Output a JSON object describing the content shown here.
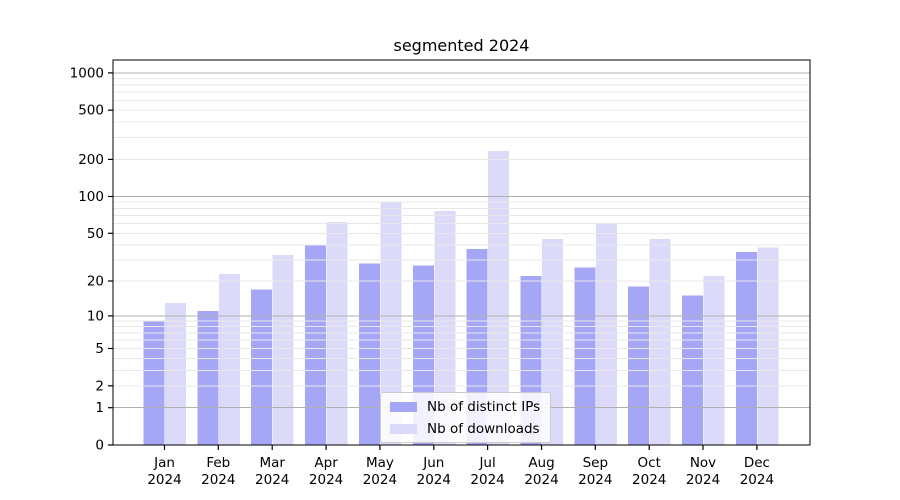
{
  "title": "segmented 2024",
  "chart_data": {
    "type": "bar",
    "title": "segmented 2024",
    "yscale": "log1p (symlog-like: y position ~ log10(value+1))",
    "y_ticks": [
      0,
      1,
      2,
      5,
      10,
      20,
      50,
      100,
      200,
      500,
      1000
    ],
    "ylim": [
      0,
      1270
    ],
    "grid": "horizontal, minor light lines every 1-9 step per decade, major lines at 1/10/100/1000, drawn over bars",
    "legend_position": "lower center inside plot",
    "x_tick_year": "2024",
    "categories": [
      "Jan",
      "Feb",
      "Mar",
      "Apr",
      "May",
      "Jun",
      "Jul",
      "Aug",
      "Sep",
      "Oct",
      "Nov",
      "Dec"
    ],
    "series": [
      {
        "name": "Nb of distinct IPs",
        "color": "#a6a6f6",
        "values": [
          9,
          11,
          17,
          40,
          28,
          27,
          37,
          22,
          26,
          18,
          15,
          35
        ]
      },
      {
        "name": "Nb of downloads",
        "color": "#dbdbf9",
        "values": [
          13,
          23,
          33,
          62,
          90,
          76,
          235,
          45,
          60,
          45,
          22,
          38
        ]
      }
    ]
  },
  "colors": {
    "background": "#ffffff",
    "axis": "#000000",
    "major_grid": "#b0b0b0",
    "minor_grid": "#e8e8e8",
    "tick_label": "#000000",
    "legend_border": "#cccccc"
  }
}
